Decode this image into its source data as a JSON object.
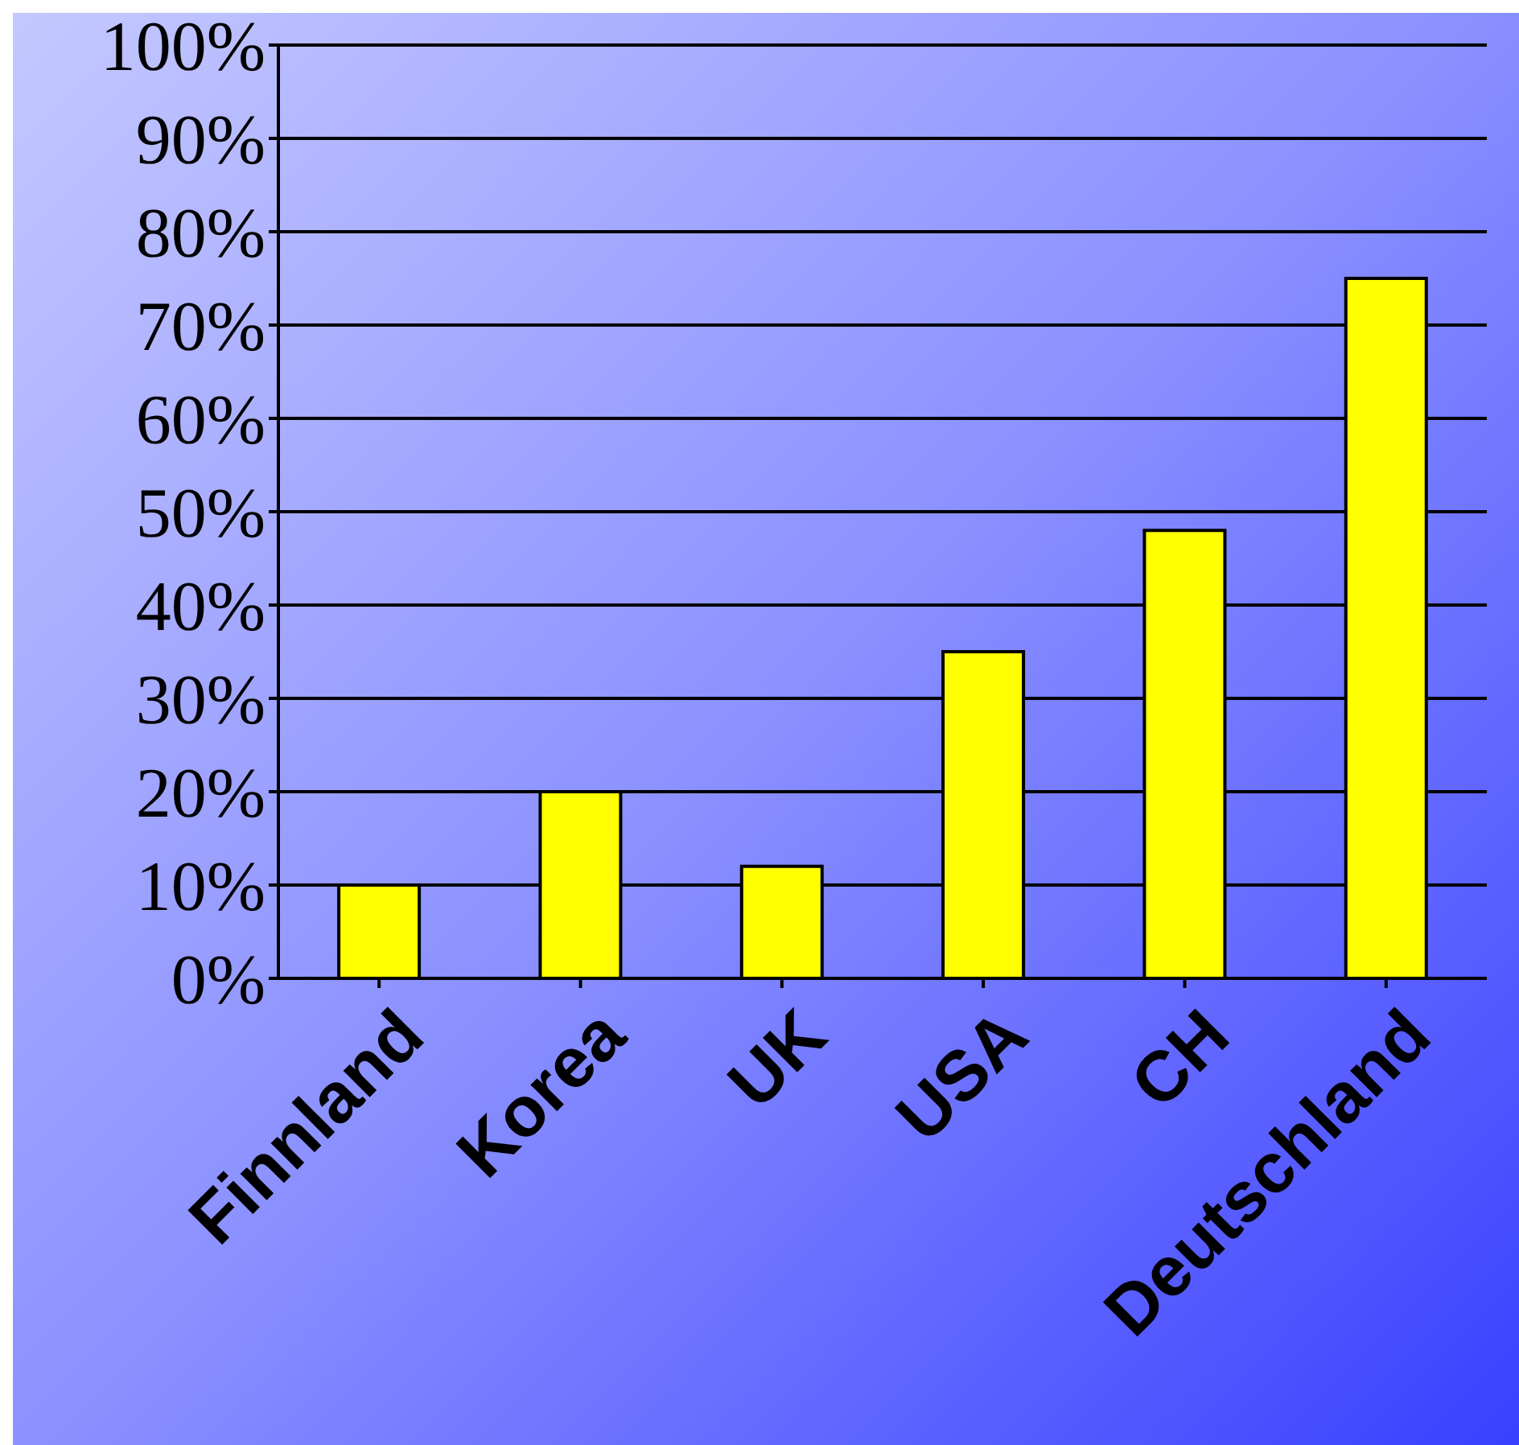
{
  "chart_data": {
    "type": "bar",
    "categories": [
      "Finnland",
      "Korea",
      "UK",
      "USA",
      "CH",
      "Deutschland"
    ],
    "values": [
      10,
      20,
      12,
      35,
      48,
      75
    ],
    "color": "#ffff00",
    "ylim": [
      0,
      100
    ],
    "yticks": [
      {
        "value": 0,
        "label": "0%"
      },
      {
        "value": 10,
        "label": "10%"
      },
      {
        "value": 20,
        "label": "20%"
      },
      {
        "value": 30,
        "label": "30%"
      },
      {
        "value": 40,
        "label": "40%"
      },
      {
        "value": 50,
        "label": "50%"
      },
      {
        "value": 60,
        "label": "60%"
      },
      {
        "value": 70,
        "label": "70%"
      },
      {
        "value": 80,
        "label": "80%"
      },
      {
        "value": 90,
        "label": "90%"
      },
      {
        "value": 100,
        "label": "100%"
      }
    ],
    "grid": "y"
  }
}
